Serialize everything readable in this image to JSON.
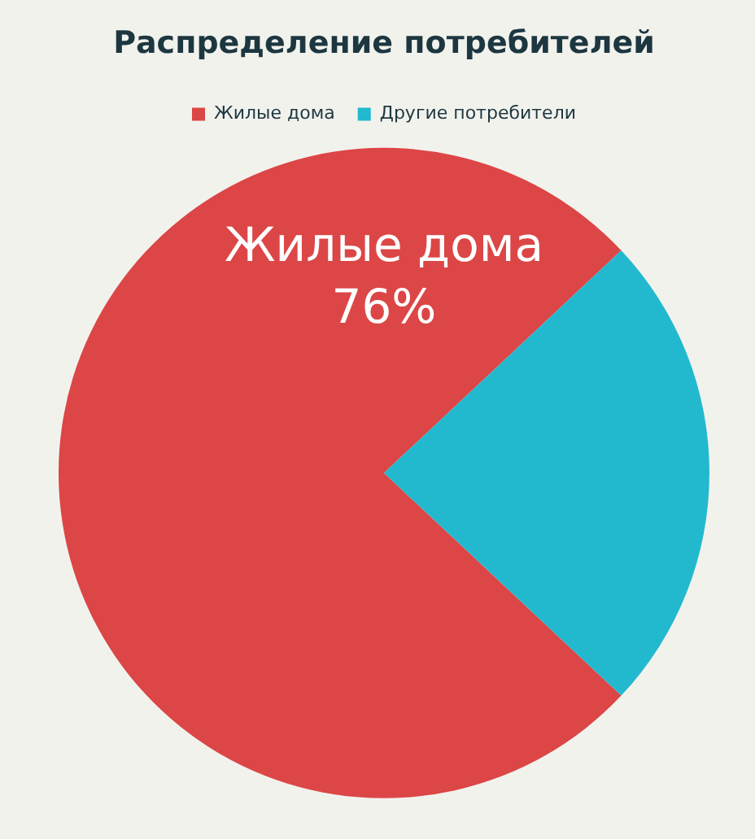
{
  "chart_data": {
    "type": "pie",
    "title": "Распределение потребителей",
    "categories": [
      "Жилые дома",
      "Другие потребители"
    ],
    "values": [
      76,
      24
    ],
    "colors": [
      "#dc4646",
      "#22b9cf"
    ],
    "value_labels": [
      "76%",
      null
    ],
    "legend": "top"
  }
}
